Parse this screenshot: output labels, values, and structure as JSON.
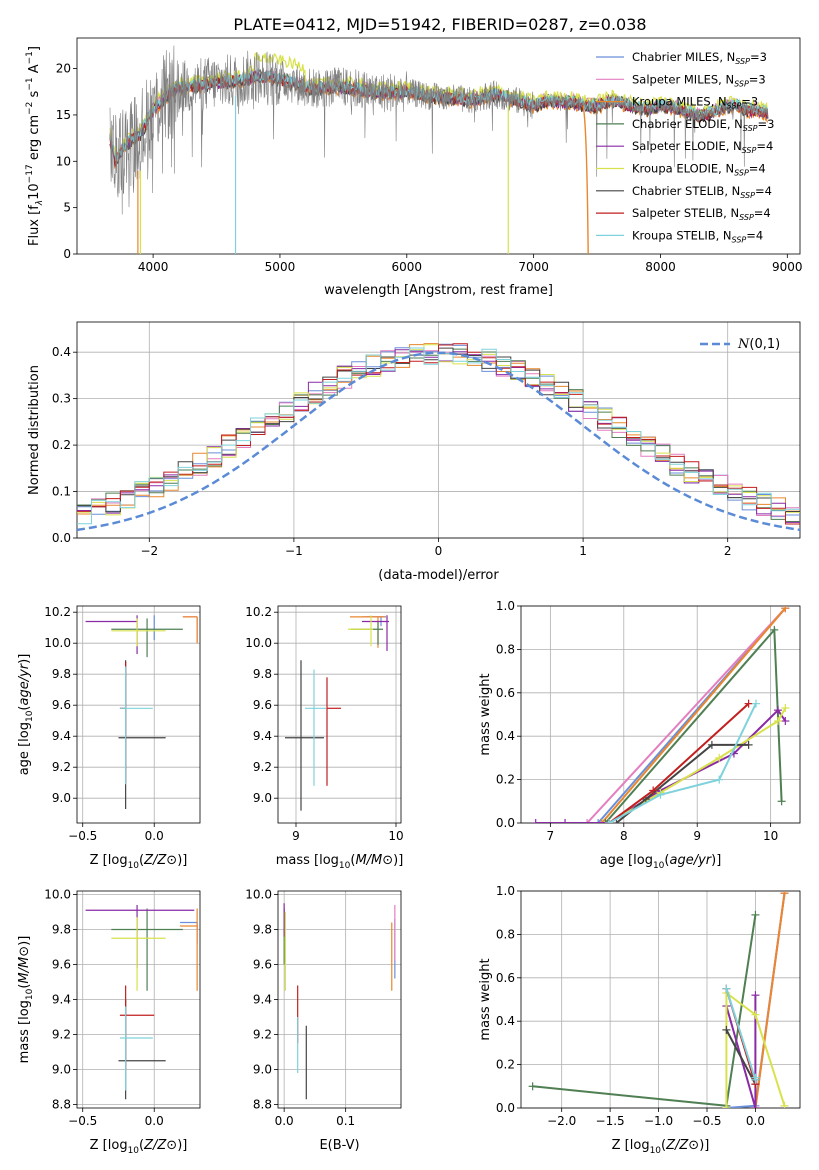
{
  "figure": {
    "title": "PLATE=0412, MJD=51942, FIBERID=0287, z=0.038"
  },
  "series_colors": [
    {
      "name": "Chabrier MILES",
      "color": "#6a8fd9"
    },
    {
      "name": "Salpeter MILES",
      "color": "#e37fc0"
    },
    {
      "name": "Kroupa MILES",
      "color": "#e8872e"
    },
    {
      "name": "Chabrier ELODIE",
      "color": "#4f7f52"
    },
    {
      "name": "Salpeter ELODIE",
      "color": "#8a2aa5"
    },
    {
      "name": "Kroupa ELODIE",
      "color": "#d8e24c"
    },
    {
      "name": "Chabrier STELIB",
      "color": "#444444"
    },
    {
      "name": "Salpeter STELIB",
      "color": "#c21f1f"
    },
    {
      "name": "Kroupa STELIB",
      "color": "#7fd2db"
    }
  ],
  "chart_data": [
    {
      "id": "spectrum",
      "type": "line",
      "xlabel": "wavelength [Angstrom, rest frame]",
      "xlim": [
        3400,
        9100
      ],
      "ylim": [
        0,
        23.3
      ],
      "xticks": [
        4000,
        5000,
        6000,
        7000,
        8000,
        9000
      ],
      "yticks": [
        0,
        5,
        10,
        15,
        20
      ],
      "data_color": "#7f7f7f",
      "legend": {
        "placement": "top-right",
        "entries": [
          {
            "label": "Chabrier MILES, N",
            "sub": "SSP",
            "suffix": "=3",
            "color": "#6a8fd9"
          },
          {
            "label": "Salpeter MILES, N",
            "sub": "SSP",
            "suffix": "=3",
            "color": "#e37fc0"
          },
          {
            "label": "Kroupa MILES, N",
            "sub": "SSP",
            "suffix": "=3",
            "color": "#e8872e"
          },
          {
            "label": "Chabrier ELODIE, N",
            "sub": "SSP",
            "suffix": "=3",
            "color": "#4f7f52"
          },
          {
            "label": "Salpeter ELODIE, N",
            "sub": "SSP",
            "suffix": "=4",
            "color": "#8a2aa5"
          },
          {
            "label": "Kroupa ELODIE, N",
            "sub": "SSP",
            "suffix": "=4",
            "color": "#d8e24c"
          },
          {
            "label": "Chabrier STELIB, N",
            "sub": "SSP",
            "suffix": "=4",
            "color": "#444444"
          },
          {
            "label": "Salpeter STELIB, N",
            "sub": "SSP",
            "suffix": "=4",
            "color": "#c21f1f"
          },
          {
            "label": "Kroupa STELIB, N",
            "sub": "SSP",
            "suffix": "=4",
            "color": "#7fd2db"
          }
        ]
      },
      "continuum": {
        "x": [
          3660,
          3700,
          3800,
          3900,
          4000,
          4100,
          4200,
          4300,
          4400,
          4500,
          4600,
          4700,
          4800,
          4900,
          5000,
          5100,
          5200,
          5300,
          5400,
          5500,
          5600,
          5700,
          5800,
          5900,
          6000,
          6100,
          6200,
          6300,
          6400,
          6500,
          6600,
          6700,
          6800,
          6900,
          7000,
          7100,
          7200,
          7300,
          7400,
          7500,
          7600,
          7700,
          7800,
          7900,
          8000,
          8100,
          8200,
          8300,
          8400,
          8500,
          8600,
          8700,
          8800,
          8850
        ],
        "y": [
          12.5,
          10.0,
          12.0,
          13.0,
          15.5,
          17.0,
          18.0,
          18.0,
          18.3,
          18.5,
          18.6,
          18.8,
          19.2,
          19.0,
          18.8,
          18.4,
          18.0,
          17.8,
          18.0,
          18.0,
          17.8,
          17.6,
          17.4,
          17.5,
          17.5,
          17.2,
          17.0,
          16.9,
          16.8,
          16.5,
          17.0,
          17.2,
          16.8,
          16.4,
          16.0,
          16.5,
          16.4,
          16.4,
          16.0,
          16.0,
          16.5,
          16.3,
          15.7,
          15.7,
          16.0,
          15.8,
          15.4,
          14.9,
          15.2,
          15.8,
          16.0,
          15.5,
          15.4,
          15.0
        ]
      }
    },
    {
      "id": "residuals",
      "type": "bar",
      "xlabel": "(data-model)/error",
      "ylabel": "Normed distribution",
      "xlim": [
        -2.5,
        2.5
      ],
      "ylim": [
        0,
        0.465
      ],
      "xticks": [
        -2,
        -1,
        0,
        1,
        2
      ],
      "yticks": [
        0.0,
        0.1,
        0.2,
        0.3,
        0.4
      ],
      "grid": true,
      "bin_width": 0.1,
      "legend": {
        "label": "N(0,1)",
        "placement": "top-right",
        "color": "#5b8bd6"
      }
    },
    {
      "id": "age-vs-z",
      "type": "scatter",
      "xlabel": "Z [log10(Z/Z⊙)]",
      "ylabel": "age [log10(age/yr)]",
      "xlim": [
        -0.54,
        0.32
      ],
      "ylim": [
        8.84,
        10.24
      ],
      "xticks": [
        -0.5,
        0.0
      ],
      "yticks": [
        9.0,
        9.2,
        9.4,
        9.6,
        9.8,
        10.0,
        10.2
      ],
      "grid": true,
      "points": [
        {
          "x": 0.0,
          "y": 10.11,
          "xerr": [
            0.0,
            0.0
          ],
          "yerr": [
            0.09,
            0.07
          ],
          "color": "#6a8fd9"
        },
        {
          "x": 0.3,
          "y": 10.17,
          "xerr": [
            0.1,
            0.0
          ],
          "yerr": [
            0.17,
            0.0
          ],
          "color": "#e37fc0"
        },
        {
          "x": 0.3,
          "y": 10.17,
          "xerr": [
            0.1,
            0.0
          ],
          "yerr": [
            0.17,
            0.0
          ],
          "color": "#e8872e"
        },
        {
          "x": -0.05,
          "y": 10.09,
          "xerr": [
            0.25,
            0.25
          ],
          "yerr": [
            0.18,
            0.07
          ],
          "color": "#4f7f52"
        },
        {
          "x": -0.12,
          "y": 10.14,
          "xerr": [
            0.36,
            0.0
          ],
          "yerr": [
            0.21,
            0.04
          ],
          "color": "#8a2aa5"
        },
        {
          "x": -0.12,
          "y": 10.08,
          "xerr": [
            0.18,
            0.2
          ],
          "yerr": [
            0.1,
            0.08
          ],
          "color": "#d8e24c"
        },
        {
          "x": -0.2,
          "y": 9.39,
          "xerr": [
            0.05,
            0.28
          ],
          "yerr": [
            0.46,
            0.5
          ],
          "color": "#444444"
        },
        {
          "x": -0.2,
          "y": 9.58,
          "xerr": [
            0.04,
            0.0
          ],
          "yerr": [
            0.48,
            0.3
          ],
          "color": "#c21f1f"
        },
        {
          "x": -0.2,
          "y": 9.58,
          "xerr": [
            0.04,
            0.19
          ],
          "yerr": [
            0.49,
            0.27
          ],
          "color": "#7fd2db"
        }
      ]
    },
    {
      "id": "age-vs-mass",
      "type": "scatter",
      "xlabel": "mass [log10(M/M⊙)]",
      "xlim": [
        8.82,
        10.05
      ],
      "ylim": [
        8.84,
        10.24
      ],
      "xticks": [
        9,
        10
      ],
      "yticks": [
        9.0,
        9.2,
        9.4,
        9.6,
        9.8,
        10.0,
        10.2
      ],
      "grid": true,
      "points": [
        {
          "x": 9.85,
          "y": 10.17,
          "xerr": [
            0.15,
            0.05
          ],
          "yerr": [
            0.06,
            0.0
          ],
          "color": "#6a8fd9"
        },
        {
          "x": 9.82,
          "y": 10.17,
          "xerr": [
            0.16,
            0.06
          ],
          "yerr": [
            0.0,
            0.0
          ],
          "color": "#e37fc0"
        },
        {
          "x": 9.82,
          "y": 10.17,
          "xerr": [
            0.28,
            0.07
          ],
          "yerr": [
            0.2,
            0.0
          ],
          "color": "#e8872e"
        },
        {
          "x": 9.82,
          "y": 10.09,
          "xerr": [
            0.27,
            0.05
          ],
          "yerr": [
            0.1,
            0.05
          ],
          "color": "#4f7f52"
        },
        {
          "x": 9.91,
          "y": 10.14,
          "xerr": [
            0.25,
            0.02
          ],
          "yerr": [
            0.19,
            0.04
          ],
          "color": "#8a2aa5"
        },
        {
          "x": 9.75,
          "y": 10.09,
          "xerr": [
            0.23,
            0.02
          ],
          "yerr": [
            0.11,
            0.09
          ],
          "color": "#d8e24c"
        },
        {
          "x": 9.05,
          "y": 9.39,
          "xerr": [
            0.16,
            0.23
          ],
          "yerr": [
            0.47,
            0.5
          ],
          "color": "#444444"
        },
        {
          "x": 9.31,
          "y": 9.58,
          "xerr": [
            0.0,
            0.14
          ],
          "yerr": [
            0.5,
            0.2
          ],
          "color": "#c21f1f"
        },
        {
          "x": 9.18,
          "y": 9.58,
          "xerr": [
            0.09,
            0.12
          ],
          "yerr": [
            0.5,
            0.25
          ],
          "color": "#7fd2db"
        }
      ]
    },
    {
      "id": "weight-vs-age",
      "type": "line",
      "xlabel": "age [log10(age/yr)]",
      "ylabel": "mass weight",
      "xlim": [
        6.6,
        10.4
      ],
      "ylim": [
        0,
        1
      ],
      "xticks": [
        7,
        8,
        9,
        10
      ],
      "yticks": [
        0.0,
        0.2,
        0.4,
        0.6,
        0.8,
        1.0
      ],
      "grid": true,
      "series": [
        {
          "color": "#6a8fd9",
          "x": [
            7.65,
            10.2
          ],
          "y": [
            0.0,
            0.99
          ]
        },
        {
          "color": "#e37fc0",
          "x": [
            7.5,
            10.2
          ],
          "y": [
            0.0,
            0.99
          ]
        },
        {
          "color": "#e8872e",
          "x": [
            7.7,
            10.2
          ],
          "y": [
            0.0,
            0.99
          ]
        },
        {
          "color": "#4f7f52",
          "x": [
            7.75,
            10.05,
            10.15
          ],
          "y": [
            0.0,
            0.89,
            0.1
          ]
        },
        {
          "color": "#8a2aa5",
          "x": [
            6.8,
            7.2,
            7.8,
            8.5,
            9.5,
            10.1,
            10.2
          ],
          "y": [
            0.0,
            0.0,
            0.0,
            0.15,
            0.32,
            0.52,
            0.47
          ]
        },
        {
          "color": "#d8e24c",
          "x": [
            7.8,
            8.5,
            9.3,
            10.1,
            10.2
          ],
          "y": [
            0.0,
            0.14,
            0.3,
            0.47,
            0.53
          ]
        },
        {
          "color": "#444444",
          "x": [
            7.9,
            8.3,
            9.2,
            9.7
          ],
          "y": [
            0.0,
            0.11,
            0.36,
            0.36
          ]
        },
        {
          "color": "#c21f1f",
          "x": [
            7.8,
            8.4,
            9.7
          ],
          "y": [
            0.0,
            0.15,
            0.55
          ]
        },
        {
          "color": "#7fd2db",
          "x": [
            7.8,
            8.5,
            9.3,
            9.8
          ],
          "y": [
            0.0,
            0.13,
            0.2,
            0.55
          ]
        }
      ]
    },
    {
      "id": "mass-vs-z",
      "type": "scatter",
      "xlabel": "Z [log10(Z/Z⊙)]",
      "ylabel": "mass [log10(M/M⊙)]",
      "xlim": [
        -0.54,
        0.32
      ],
      "ylim": [
        8.78,
        10.02
      ],
      "xticks": [
        -0.5,
        0.0
      ],
      "yticks": [
        8.8,
        9.0,
        9.2,
        9.4,
        9.6,
        9.8,
        10.0
      ],
      "grid": true,
      "points": [
        {
          "x": 0.3,
          "y": 9.84,
          "xerr": [
            0.12,
            0.0
          ],
          "yerr": [
            0.04,
            0.0
          ],
          "color": "#6a8fd9"
        },
        {
          "x": 0.3,
          "y": 9.82,
          "xerr": [
            0.0,
            0.0
          ],
          "yerr": [
            0.1,
            0.0
          ],
          "color": "#e37fc0"
        },
        {
          "x": 0.3,
          "y": 9.82,
          "xerr": [
            0.12,
            0.0
          ],
          "yerr": [
            0.37,
            0.1
          ],
          "color": "#e8872e"
        },
        {
          "x": -0.05,
          "y": 9.8,
          "xerr": [
            0.25,
            0.25
          ],
          "yerr": [
            0.35,
            0.12
          ],
          "color": "#4f7f52"
        },
        {
          "x": -0.12,
          "y": 9.91,
          "xerr": [
            0.36,
            0.4
          ],
          "yerr": [
            0.33,
            0.03
          ],
          "color": "#8a2aa5"
        },
        {
          "x": -0.12,
          "y": 9.75,
          "xerr": [
            0.18,
            0.2
          ],
          "yerr": [
            0.3,
            0.12
          ],
          "color": "#d8e24c"
        },
        {
          "x": -0.2,
          "y": 9.05,
          "xerr": [
            0.05,
            0.28
          ],
          "yerr": [
            0.22,
            0.35
          ],
          "color": "#444444"
        },
        {
          "x": -0.2,
          "y": 9.31,
          "xerr": [
            0.04,
            0.2
          ],
          "yerr": [
            0.31,
            0.17
          ],
          "color": "#c21f1f"
        },
        {
          "x": -0.2,
          "y": 9.18,
          "xerr": [
            0.04,
            0.19
          ],
          "yerr": [
            0.3,
            0.18
          ],
          "color": "#7fd2db"
        }
      ]
    },
    {
      "id": "mass-vs-ebv",
      "type": "scatter",
      "xlabel": "E(B-V)",
      "xlim": [
        -0.01,
        0.19
      ],
      "ylim": [
        8.78,
        10.02
      ],
      "xticks": [
        0.0,
        0.1
      ],
      "yticks": [
        8.8,
        9.0,
        9.2,
        9.4,
        9.6,
        9.8,
        10.0
      ],
      "grid": true,
      "points": [
        {
          "x": 0.18,
          "y": 9.82,
          "yerr": [
            0.3,
            0.04
          ],
          "color": "#6a8fd9"
        },
        {
          "x": 0.18,
          "y": 9.82,
          "yerr": [
            0.2,
            0.12
          ],
          "color": "#e37fc0"
        },
        {
          "x": 0.175,
          "y": 9.82,
          "yerr": [
            0.37,
            0.02
          ],
          "color": "#e8872e"
        },
        {
          "x": 0.0,
          "y": 9.8,
          "yerr": [
            0.2,
            0.12
          ],
          "color": "#4f7f52"
        },
        {
          "x": 0.0,
          "y": 9.91,
          "yerr": [
            0.15,
            0.04
          ],
          "color": "#8a2aa5"
        },
        {
          "x": 0.002,
          "y": 9.75,
          "yerr": [
            0.3,
            0.15
          ],
          "color": "#d8e24c"
        },
        {
          "x": 0.036,
          "y": 9.05,
          "yerr": [
            0.22,
            0.2
          ],
          "color": "#444444"
        },
        {
          "x": 0.022,
          "y": 9.31,
          "yerr": [
            0.16,
            0.17
          ],
          "color": "#c21f1f"
        },
        {
          "x": 0.022,
          "y": 9.18,
          "yerr": [
            0.2,
            0.12
          ],
          "color": "#7fd2db"
        }
      ]
    },
    {
      "id": "weight-vs-z",
      "type": "line",
      "xlabel": "Z [log10(Z/Z⊙)]",
      "ylabel": "mass weight",
      "xlim": [
        -2.42,
        0.46
      ],
      "ylim": [
        0,
        1
      ],
      "xticks": [
        -2.0,
        -1.5,
        -1.0,
        -0.5,
        0.0
      ],
      "yticks": [
        0.0,
        0.2,
        0.4,
        0.6,
        0.8,
        1.0
      ],
      "grid": true,
      "series": [
        {
          "color": "#6a8fd9",
          "x": [
            -0.3,
            0.0,
            0.3
          ],
          "y": [
            0.0,
            0.01,
            0.99
          ]
        },
        {
          "color": "#e37fc0",
          "x": [
            0.0,
            0.3
          ],
          "y": [
            0.0,
            0.99
          ]
        },
        {
          "color": "#e8872e",
          "x": [
            0.0,
            0.3
          ],
          "y": [
            0.0,
            0.99
          ]
        },
        {
          "color": "#4f7f52",
          "x": [
            -2.3,
            -0.3,
            0.0
          ],
          "y": [
            0.1,
            0.01,
            0.89
          ]
        },
        {
          "color": "#8a2aa5",
          "x": [
            -0.3,
            0.0,
            0.0
          ],
          "y": [
            0.47,
            0.0,
            0.52
          ]
        },
        {
          "color": "#d8e24c",
          "x": [
            -0.3,
            -0.3,
            0.0,
            0.3
          ],
          "y": [
            0.0,
            0.53,
            0.43,
            0.01
          ]
        },
        {
          "color": "#444444",
          "x": [
            -0.3,
            0.0,
            0.0
          ],
          "y": [
            0.36,
            0.11,
            0.13
          ]
        },
        {
          "color": "#c21f1f",
          "x": [
            -0.3,
            0.0
          ],
          "y": [
            0.55,
            0.11
          ]
        },
        {
          "color": "#7fd2db",
          "x": [
            -0.3,
            0.0,
            0.0
          ],
          "y": [
            0.55,
            0.13,
            0.14
          ]
        }
      ]
    }
  ]
}
